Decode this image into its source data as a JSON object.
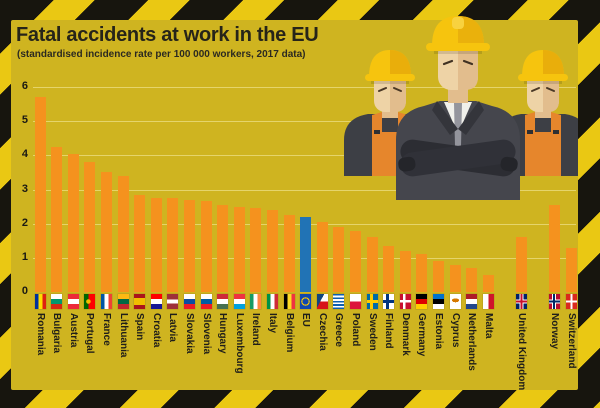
{
  "title": "Fatal accidents at work in the EU",
  "subtitle": "(standardised incidence rate per 100 000 workers, 2017 data)",
  "colors": {
    "panel_background": "#cfb420",
    "border_yellow": "#eac813",
    "stripe_black": "#17150e",
    "bar_orange": "#f5921e",
    "eu_bar_blue": "#2173b5",
    "gridline": "#f8eeaa",
    "text_dark": "#26241d"
  },
  "chart_data": {
    "type": "bar",
    "title": "Fatal accidents at work in the EU",
    "subtitle": "(standardised incidence rate per 100 000 workers, 2017 data)",
    "ylabel": "standardised incidence rate per 100 000 workers",
    "ylim": [
      0,
      6
    ],
    "yticks": [
      0,
      1,
      2,
      3,
      4,
      5,
      6
    ],
    "grid": true,
    "legend": "none",
    "bar_color": "#f5921e",
    "highlight_color": "#2173b5",
    "countries": [
      {
        "name": "Romania",
        "slot": 0,
        "value": 5.7,
        "flag": "linear-gradient(90deg,#00319c 0 34%,#ffde00 34% 67%,#de2110 67%)"
      },
      {
        "name": "Bulgaria",
        "slot": 1,
        "value": 4.25,
        "flag": "linear-gradient(#ffffff 0 34%,#00966e 34% 67%,#d62612 67%)"
      },
      {
        "name": "Austria",
        "slot": 2,
        "value": 4.05,
        "flag": "linear-gradient(#ed2939 0 34%,#ffffff 34% 67%,#ed2939 67%)"
      },
      {
        "name": "Portugal",
        "slot": 3,
        "value": 3.8,
        "flag": "radial-gradient(circle at 40% 50%, #f1bf00 0 2px, rgba(0,0,0,0) 2.5px),linear-gradient(90deg,#006600 0 40%,#ff0000 40%)"
      },
      {
        "name": "France",
        "slot": 4,
        "value": 3.5,
        "flag": "linear-gradient(90deg,#0055a4 0 34%,#ffffff 34% 67%,#ef4135 67%)"
      },
      {
        "name": "Lithuania",
        "slot": 5,
        "value": 3.4,
        "flag": "linear-gradient(#fdb913 0 34%,#006a44 34% 67%,#c1272d 67%)"
      },
      {
        "name": "Spain",
        "slot": 6,
        "value": 2.85,
        "flag": "linear-gradient(#aa151b 0 28%,#f1bf00 28% 72%,#aa151b 72%)"
      },
      {
        "name": "Croatia",
        "slot": 7,
        "value": 2.75,
        "flag": "linear-gradient(#ff0000 0 34%,#ffffff 34% 67%,#171796 67%)"
      },
      {
        "name": "Latvia",
        "slot": 8,
        "value": 2.75,
        "flag": "linear-gradient(#9e3039 0 38%,#ffffff 38% 62%,#9e3039 62%)"
      },
      {
        "name": "Slovakia",
        "slot": 9,
        "value": 2.7,
        "flag": "linear-gradient(#ffffff 0 34%,#0b4ea2 34% 67%,#ee1c25 67%)"
      },
      {
        "name": "Slovenia",
        "slot": 10,
        "value": 2.65,
        "flag": "linear-gradient(#ffffff 0 34%,#005da4 34% 67%,#ed1c24 67%)"
      },
      {
        "name": "Hungary",
        "slot": 11,
        "value": 2.55,
        "flag": "linear-gradient(#ce2939 0 34%,#ffffff 34% 67%,#477050 67%)"
      },
      {
        "name": "Luxembourg",
        "slot": 12,
        "value": 2.5,
        "flag": "linear-gradient(#ef3340 0 34%,#ffffff 34% 67%,#00a1de 67%)"
      },
      {
        "name": "Ireland",
        "slot": 13,
        "value": 2.45,
        "flag": "linear-gradient(90deg,#169b62 0 34%,#ffffff 34% 67%,#ff883e 67%)"
      },
      {
        "name": "Italy",
        "slot": 14,
        "value": 2.4,
        "flag": "linear-gradient(90deg,#009246 0 34%,#ffffff 34% 67%,#ce2b37 67%)"
      },
      {
        "name": "Belgium",
        "slot": 15,
        "value": 2.25,
        "flag": "linear-gradient(90deg,#000000 0 34%,#fdda24 34% 67%,#ef3340 67%)"
      },
      {
        "name": "EU",
        "slot": 16,
        "value": 2.2,
        "highlight": true,
        "flag": "radial-gradient(circle at 5.5px 7.5px, rgba(0,0,0,0) 3.1px, #ffcc00 3.2px 4.2px, rgba(0,0,0,0) 4.3px),linear-gradient(#0f47af,#0f47af)"
      },
      {
        "name": "Czechia",
        "slot": 17,
        "value": 2.05,
        "flag": "linear-gradient(118deg,#11457e 38%,rgba(0,0,0,0) 38.5%),linear-gradient(#ffffff 0 50%,#d7141a 50%)"
      },
      {
        "name": "Greece",
        "slot": 18,
        "value": 1.9,
        "flag": "repeating-linear-gradient(#0d5eaf 0 1.7px,#ffffff 1.7px 3.4px)"
      },
      {
        "name": "Poland",
        "slot": 19,
        "value": 1.8,
        "flag": "linear-gradient(#ffffff 0 50%,#dc143c 50%)"
      },
      {
        "name": "Sweden",
        "slot": 20,
        "value": 1.6,
        "flag": "linear-gradient(90deg,rgba(0,0,0,0) 0 3px,#fecc00 3px 6px,rgba(0,0,0,0) 6px),linear-gradient(rgba(0,0,0,0) 0 6px,#fecc00 6px 9px,rgba(0,0,0,0) 9px),linear-gradient(#006aa7,#006aa7)"
      },
      {
        "name": "Finland",
        "slot": 21,
        "value": 1.35,
        "flag": "linear-gradient(90deg,rgba(0,0,0,0) 0 3px,#003580 3px 6px,rgba(0,0,0,0) 6px),linear-gradient(rgba(0,0,0,0) 0 6px,#003580 6px 9px,rgba(0,0,0,0) 9px),linear-gradient(#ffffff,#ffffff)"
      },
      {
        "name": "Denmark",
        "slot": 22,
        "value": 1.2,
        "flag": "linear-gradient(90deg,rgba(0,0,0,0) 0 3px,#ffffff 3px 5.5px,rgba(0,0,0,0) 5.5px),linear-gradient(rgba(0,0,0,0) 0 6px,#ffffff 6px 8.5px,rgba(0,0,0,0) 8.5px),linear-gradient(#c8102e,#c8102e)"
      },
      {
        "name": "Germany",
        "slot": 23,
        "value": 1.1,
        "flag": "linear-gradient(#000000 0 34%,#dd0000 34% 67%,#ffce00 67%)"
      },
      {
        "name": "Estonia",
        "slot": 24,
        "value": 0.9,
        "flag": "linear-gradient(#0072ce 0 34%,#000000 34% 67%,#ffffff 67%)"
      },
      {
        "name": "Cyprus",
        "slot": 25,
        "value": 0.8,
        "flag": "radial-gradient(ellipse 3.5px 2px at 50% 42%,#d57800 98%,rgba(0,0,0,0)),linear-gradient(#ffffff,#ffffff)"
      },
      {
        "name": "Netherlands",
        "slot": 26,
        "value": 0.7,
        "flag": "linear-gradient(#ae1c28 0 34%,#ffffff 34% 67%,#21468b 67%)"
      },
      {
        "name": "Malta",
        "slot": 27,
        "value": 0.5,
        "flag": "linear-gradient(90deg,#ffffff 0 50%,#cf142b 50%)"
      },
      {
        "name": "United Kingdom",
        "slot": 29,
        "value": 1.6,
        "non_eu": true,
        "flag": "linear-gradient(90deg,rgba(0,0,0,0) 0 4.5px,#c8102e 4.5px 6.5px,rgba(0,0,0,0) 6.5px),linear-gradient(rgba(0,0,0,0) 0 6.5px,#c8102e 6.5px 8.5px,rgba(0,0,0,0) 8.5px),linear-gradient(90deg,rgba(0,0,0,0) 0 3.5px,#ffffff 3.5px 7.5px,rgba(0,0,0,0) 7.5px),linear-gradient(rgba(0,0,0,0) 0 5.5px,#ffffff 5.5px 9.5px,rgba(0,0,0,0) 9.5px),linear-gradient(#012169,#012169)"
      },
      {
        "name": "Norway",
        "slot": 31,
        "value": 2.55,
        "non_eu": true,
        "flag": "linear-gradient(90deg,rgba(0,0,0,0) 0 4px,#002868 4px 6px,rgba(0,0,0,0) 6px),linear-gradient(rgba(0,0,0,0) 0 6.5px,#002868 6.5px 8.5px,rgba(0,0,0,0) 8.5px),linear-gradient(90deg,rgba(0,0,0,0) 0 3px,#ffffff 3px 7px,rgba(0,0,0,0) 7px),linear-gradient(rgba(0,0,0,0) 0 5.5px,#ffffff 5.5px 9.5px,rgba(0,0,0,0) 9.5px),linear-gradient(#ba0c2f,#ba0c2f)"
      },
      {
        "name": "Switzerland",
        "slot": 32,
        "value": 1.3,
        "non_eu": true,
        "flag": "linear-gradient(90deg,rgba(0,0,0,0) 0 4.5px,#ffffff 4.5px 6.5px,rgba(0,0,0,0) 6.5px),linear-gradient(rgba(0,0,0,0) 0 6.5px,#ffffff 6.5px 8.5px,rgba(0,0,0,0) 8.5px),linear-gradient(#da291c,#da291c)"
      }
    ]
  }
}
